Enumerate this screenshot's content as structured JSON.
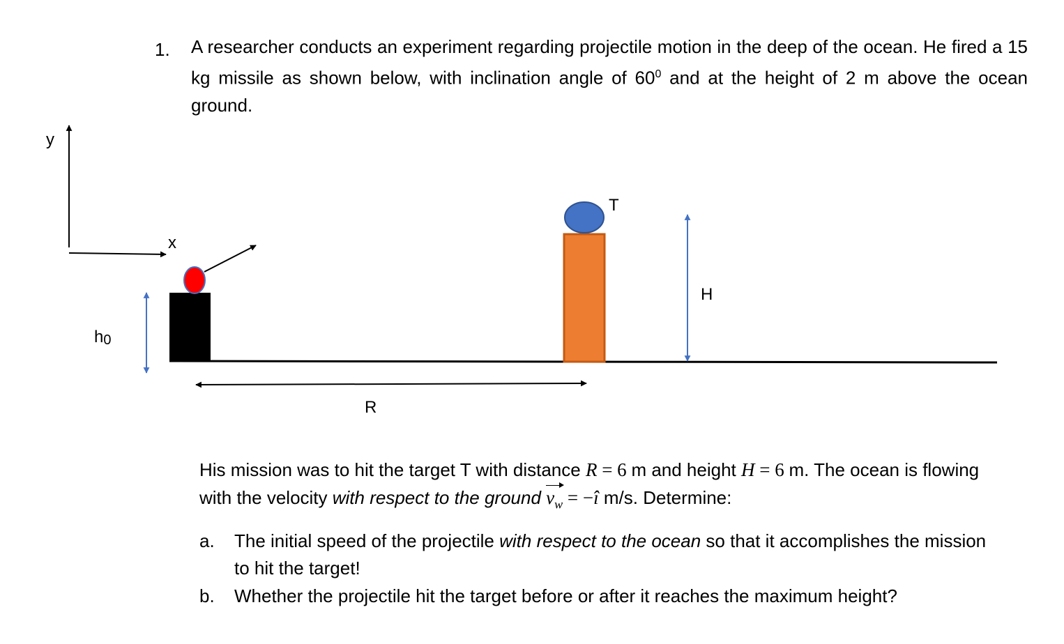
{
  "problem": {
    "number": "1.",
    "text": "A researcher conducts an experiment regarding projectile motion in the deep of the ocean. He fired a 15 kg missile as shown below, with inclination angle of 60",
    "degree_mark": "0",
    "text_end": " and at the height of 2 m above the ocean ground."
  },
  "diagram": {
    "y_axis_label": "y",
    "x_axis_label": "x",
    "initial_height_label": "h",
    "initial_height_subscript": "0",
    "target_label": "T",
    "height_label": "H",
    "range_label": "R",
    "colors": {
      "launcher": "#000000",
      "missile_fill": "#ff0000",
      "missile_outline": "#4472c4",
      "target_fill": "#4472c4",
      "target_outline": "#2f528f",
      "tower_fill": "#ed7d31",
      "tower_outline": "#c55a11",
      "dimension_arrows": "#4472c4"
    }
  },
  "mission": {
    "t1": "His mission was to hit the target T with distance ",
    "R_var": "R",
    "eq1": " = 6 ",
    "t2": "m and height ",
    "H_var": "H",
    "eq2": " = 6 ",
    "t3": "m. The ocean is flowing with the velocity ",
    "emph": "with respect to the ground",
    "vec_v": "v",
    "vec_sub": "w",
    "eq3": " = −",
    "i_hat": "î",
    "t4": " m/s. Determine:"
  },
  "questions": [
    {
      "marker": "a.",
      "t1": "The initial speed of the projectile ",
      "emph": "with respect to the ocean",
      "t2": " so that it accomplishes the mission to hit the target!"
    },
    {
      "marker": "b.",
      "t1": "Whether the projectile hit the target before or after it reaches the maximum height?"
    }
  ]
}
